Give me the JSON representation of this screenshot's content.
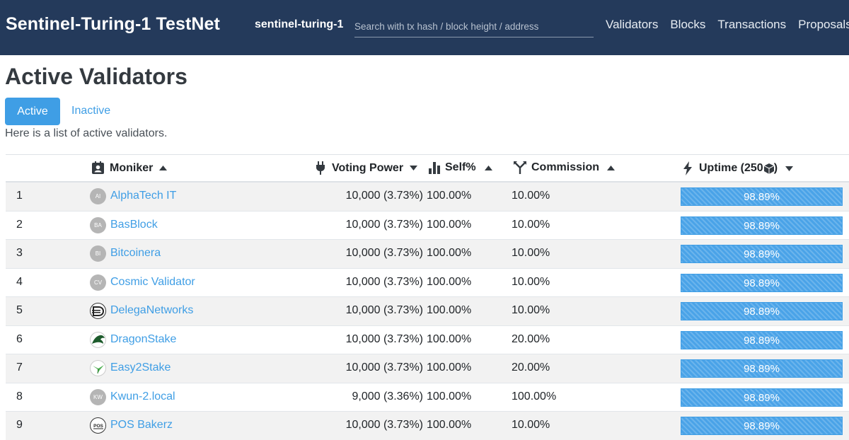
{
  "navbar": {
    "brand": "Sentinel-Turing-1 TestNet",
    "chain_id": "sentinel-turing-1",
    "search_placeholder": "Search with tx hash / block height / address",
    "links": [
      "Validators",
      "Blocks",
      "Transactions",
      "Proposals"
    ]
  },
  "page": {
    "title": "Active Validators",
    "tab_active": "Active",
    "tab_inactive": "Inactive",
    "subtitle": "Here is a list of active validators."
  },
  "table": {
    "headers": {
      "moniker": "Moniker",
      "voting_power": "Voting Power",
      "self": "Self%",
      "commission": "Commission",
      "uptime": "Uptime (250"
    },
    "rows": [
      {
        "rank": "1",
        "initials": "AI",
        "avatar": "initials",
        "moniker": "AlphaTech IT",
        "voting_power": "10,000 (3.73%)",
        "self": "100.00%",
        "commission": "10.00%",
        "uptime": "98.89%",
        "uptime_fraction": 0.9889
      },
      {
        "rank": "2",
        "initials": "BA",
        "avatar": "initials",
        "moniker": "BasBlock",
        "voting_power": "10,000 (3.73%)",
        "self": "100.00%",
        "commission": "10.00%",
        "uptime": "98.89%",
        "uptime_fraction": 0.9889
      },
      {
        "rank": "3",
        "initials": "BI",
        "avatar": "initials",
        "moniker": "Bitcoinera",
        "voting_power": "10,000 (3.73%)",
        "self": "100.00%",
        "commission": "10.00%",
        "uptime": "98.89%",
        "uptime_fraction": 0.9889
      },
      {
        "rank": "4",
        "initials": "CV",
        "avatar": "initials",
        "moniker": "Cosmic Validator",
        "voting_power": "10,000 (3.73%)",
        "self": "100.00%",
        "commission": "10.00%",
        "uptime": "98.89%",
        "uptime_fraction": 0.9889
      },
      {
        "rank": "5",
        "initials": "",
        "avatar": "delega-logo",
        "moniker": "DelegaNetworks",
        "voting_power": "10,000 (3.73%)",
        "self": "100.00%",
        "commission": "10.00%",
        "uptime": "98.89%",
        "uptime_fraction": 0.9889
      },
      {
        "rank": "6",
        "initials": "",
        "avatar": "dragon-logo",
        "moniker": "DragonStake",
        "voting_power": "10,000 (3.73%)",
        "self": "100.00%",
        "commission": "20.00%",
        "uptime": "98.89%",
        "uptime_fraction": 0.9889
      },
      {
        "rank": "7",
        "initials": "",
        "avatar": "easy2stake-logo",
        "moniker": "Easy2Stake",
        "voting_power": "10,000 (3.73%)",
        "self": "100.00%",
        "commission": "20.00%",
        "uptime": "98.89%",
        "uptime_fraction": 0.9889
      },
      {
        "rank": "8",
        "initials": "KW",
        "avatar": "initials",
        "moniker": "Kwun-2.local",
        "voting_power": "9,000 (3.36%)",
        "self": "100.00%",
        "commission": "100.00%",
        "uptime": "98.89%",
        "uptime_fraction": 0.9889
      },
      {
        "rank": "9",
        "initials": "",
        "avatar": "pos-bakerz-logo",
        "moniker": "POS Bakerz",
        "voting_power": "10,000 (3.73%)",
        "self": "100.00%",
        "commission": "10.00%",
        "uptime": "98.89%",
        "uptime_fraction": 0.9889
      }
    ]
  },
  "colors": {
    "navbar": "#243a5b",
    "accent": "#3f9ee5",
    "stripe": "#f2f2f2"
  }
}
